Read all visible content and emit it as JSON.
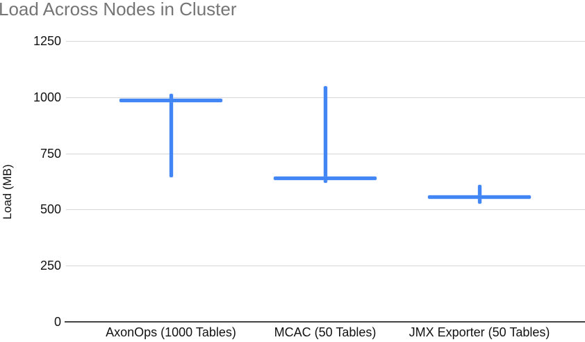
{
  "chart_data": {
    "type": "candlestick",
    "title": "Load Across Nodes in Cluster",
    "xlabel": "",
    "ylabel": "Load (MB)",
    "ylim": [
      0,
      1250
    ],
    "yticks": [
      0,
      250,
      500,
      750,
      1000,
      1250
    ],
    "grid": true,
    "legend": "none",
    "series_color": "#4285f4",
    "categories": [
      "AxonOps (1000 Tables)",
      "MCAC (50 Tables)",
      "JMX Exporter (50 Tables)"
    ],
    "points": [
      {
        "category": "AxonOps (1000 Tables)",
        "value": 985,
        "low": 645,
        "high": 1015
      },
      {
        "category": "MCAC (50 Tables)",
        "value": 640,
        "low": 620,
        "high": 1050
      },
      {
        "category": "JMX Exporter (50 Tables)",
        "value": 555,
        "low": 525,
        "high": 610
      }
    ]
  },
  "colors": {
    "title_text": "#757575",
    "axis_text": "#111111",
    "gridline": "#d6d6d6",
    "baseline": "#424242",
    "series": "#4285f4",
    "background": "#ffffff"
  }
}
